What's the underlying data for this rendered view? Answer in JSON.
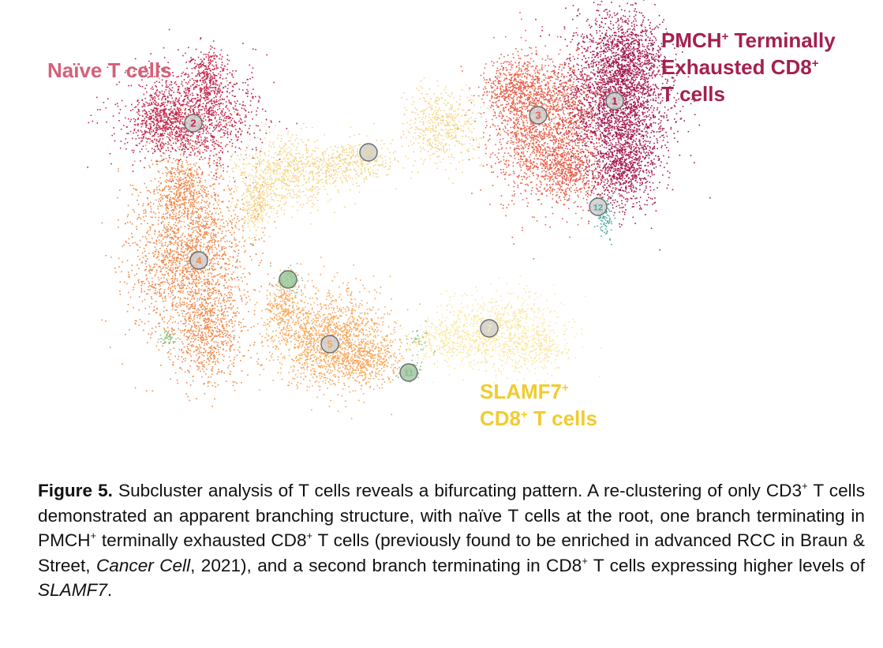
{
  "labels": {
    "naive": {
      "text": "Naïve T cells",
      "color": "#d4607a"
    },
    "pmch": {
      "line1_a": "PMCH",
      "line1_sup": "+",
      "line1_b": " Terminally",
      "line2_a": "Exhausted CD8",
      "line2_sup": "+",
      "line3": "T cells",
      "color": "#a4204f"
    },
    "slamf7": {
      "line1_a": "SLAMF7",
      "line1_sup": "+",
      "line2_a": "CD8",
      "line2_sup": "+",
      "line2_b": " T cells",
      "color": "#f2cb2e"
    }
  },
  "clusters": [
    {
      "id": "1",
      "number": "1",
      "color": "#a3194e"
    },
    {
      "id": "2",
      "number": "2",
      "color": "#c1274d"
    },
    {
      "id": "3",
      "number": "3",
      "color": "#e8604b"
    },
    {
      "id": "4",
      "number": "4",
      "color": "#f08a4c"
    },
    {
      "id": "5",
      "number": "5",
      "color": "#f7a85a"
    },
    {
      "id": "6",
      "number": "6",
      "color": "#f6d58a"
    },
    {
      "id": "7",
      "number": "7",
      "color": "#f9e8a0"
    },
    {
      "id": "10",
      "number": "",
      "color": "#8bc78b"
    },
    {
      "id": "11",
      "number": "11",
      "color": "#88c28a"
    },
    {
      "id": "12",
      "number": "12",
      "color": "#49a7a1"
    }
  ],
  "caption": {
    "figure_label": "Figure 5.",
    "s1": " Subcluster analysis of T cells reveals a bifurcating pattern. A re-clustering of only CD3",
    "sup1": "+",
    "s2": " T cells demonstrated an apparent branching structure, with naïve T cells at the root, one branch terminating in PMCH",
    "sup2": "+",
    "s3": " terminally exhausted CD8",
    "sup3": "+",
    "s4": " T cells (previously found to be enriched in advanced RCC in Braun & Street, ",
    "journal": "Cancer Cell",
    "s5": ", 2021), and a second branch terminating in CD8",
    "sup4": "+",
    "s6": " T cells expressing higher levels of ",
    "gene": "SLAMF7",
    "s7": "."
  }
}
